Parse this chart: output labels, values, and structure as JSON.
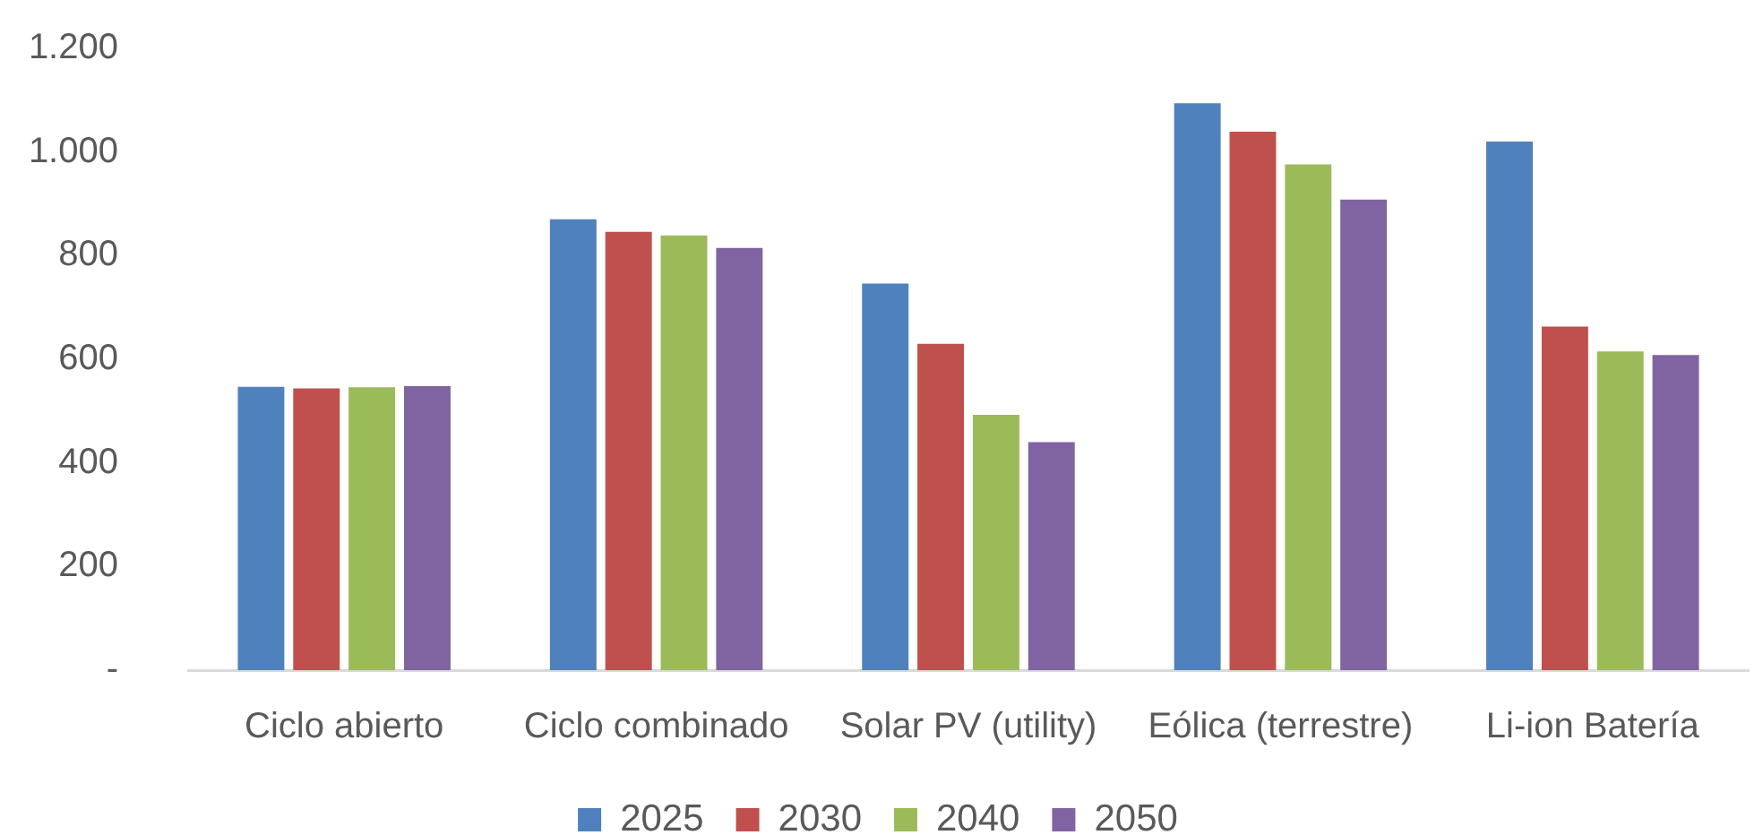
{
  "chart_data": {
    "type": "bar",
    "categories": [
      "Ciclo abierto",
      "Ciclo combinado",
      "Solar PV (utility)",
      "Eólica (terrestre)",
      "Li-ion Batería"
    ],
    "series": [
      {
        "name": "2025",
        "color": "#4f81bd",
        "values": [
          547,
          870,
          746,
          1094,
          1020
        ]
      },
      {
        "name": "2030",
        "color": "#c0504d",
        "values": [
          544,
          846,
          630,
          1039,
          663
        ]
      },
      {
        "name": "2040",
        "color": "#9bbb59",
        "values": [
          546,
          839,
          493,
          976,
          615
        ]
      },
      {
        "name": "2050",
        "color": "#8064a2",
        "values": [
          548,
          815,
          440,
          908,
          608
        ]
      }
    ],
    "ylim": [
      0,
      1200
    ],
    "yticks": [
      {
        "value": 0,
        "label": "-"
      },
      200,
      400,
      600,
      800,
      {
        "value": 1000,
        "label": "1.000"
      },
      {
        "value": 1200,
        "label": "1.200"
      }
    ],
    "grid": false,
    "legend": "bottom"
  }
}
